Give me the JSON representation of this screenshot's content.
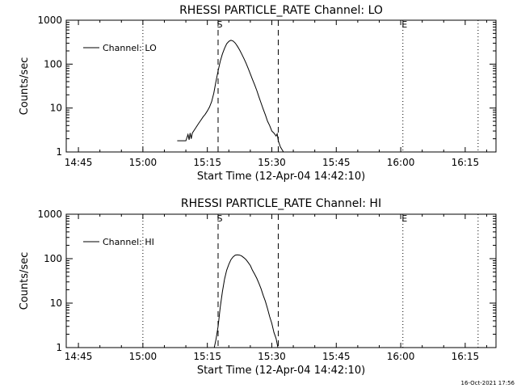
{
  "footer_timestamp": "16-Oct-2021 17:56",
  "x_tick_labels": [
    "14:45",
    "15:00",
    "15:15",
    "15:30",
    "15:45",
    "16:00",
    "16:15"
  ],
  "x_tick_minutes": [
    105,
    120,
    135,
    150,
    165,
    180,
    195
  ],
  "y_tick_labels": [
    "1",
    "10",
    "100",
    "1000"
  ],
  "marker_s": "S",
  "marker_e": "E",
  "chart_data": [
    {
      "type": "line",
      "title": "RHESSI PARTICLE_RATE Channel: LO",
      "xlabel": "Start Time (12-Apr-04 14:42:10)",
      "ylabel": "Counts/sec",
      "x_unit": "UT time 12-Apr-04",
      "xlim": [
        "14:42:10",
        "16:22:10"
      ],
      "ylim": [
        1,
        1000
      ],
      "y_scale": "log",
      "grid": false,
      "legend_position": "upper-left",
      "series": [
        {
          "name": "Channel: LO",
          "x": [
            "15:08",
            "15:10",
            "15:10:30",
            "15:10:45",
            "15:11",
            "15:11:15",
            "15:11:30",
            "15:12",
            "15:12:30",
            "15:13",
            "15:13:30",
            "15:14",
            "15:14:30",
            "15:15",
            "15:15:30",
            "15:16",
            "15:16:30",
            "15:17",
            "15:17:30",
            "15:18",
            "15:18:30",
            "15:19",
            "15:19:30",
            "15:20",
            "15:20:30",
            "15:21",
            "15:21:30",
            "15:22",
            "15:22:30",
            "15:23",
            "15:23:30",
            "15:24",
            "15:24:30",
            "15:25",
            "15:25:30",
            "15:26",
            "15:26:30",
            "15:27",
            "15:27:30",
            "15:28",
            "15:28:30",
            "15:29",
            "15:29:30",
            "15:30",
            "15:30:30",
            "15:31",
            "15:31:15",
            "15:31:30",
            "15:32",
            "15:33"
          ],
          "y": [
            1.8,
            1.8,
            2.5,
            1.9,
            2.7,
            2.0,
            2.7,
            3.2,
            3.8,
            4.5,
            5.3,
            6.3,
            7.2,
            8.6,
            10.5,
            14,
            22,
            40,
            70,
            115,
            170,
            230,
            290,
            330,
            350,
            335,
            300,
            255,
            210,
            170,
            135,
            105,
            80,
            60,
            45,
            34,
            25,
            18,
            13,
            9.5,
            7,
            5,
            4,
            3,
            2.7,
            2.3,
            2.6,
            1.8,
            1.3,
            0.9
          ]
        }
      ],
      "reference_lines": [
        {
          "label": "S",
          "x": "15:17:30",
          "style": "dashed"
        },
        {
          "label": "",
          "x": "15:31:30",
          "style": "dashed"
        },
        {
          "label": "",
          "x": "15:00",
          "style": "dotted"
        },
        {
          "label": "E",
          "x": "16:00:30",
          "style": "dotted"
        },
        {
          "label": "",
          "x": "16:18",
          "style": "dotted"
        }
      ]
    },
    {
      "type": "line",
      "title": "RHESSI PARTICLE_RATE Channel: HI",
      "xlabel": "Start Time (12-Apr-04 14:42:10)",
      "ylabel": "Counts/sec",
      "x_unit": "UT time 12-Apr-04",
      "xlim": [
        "14:42:10",
        "16:22:10"
      ],
      "ylim": [
        1,
        1000
      ],
      "y_scale": "log",
      "grid": false,
      "legend_position": "upper-left",
      "series": [
        {
          "name": "Channel: HI",
          "x": [
            "15:16:30",
            "15:17",
            "15:17:30",
            "15:18",
            "15:18:30",
            "15:19",
            "15:19:30",
            "15:20",
            "15:20:30",
            "15:21",
            "15:21:30",
            "15:22",
            "15:22:30",
            "15:23",
            "15:23:30",
            "15:24",
            "15:24:30",
            "15:25",
            "15:25:30",
            "15:26",
            "15:26:30",
            "15:27",
            "15:27:30",
            "15:28",
            "15:28:30",
            "15:29",
            "15:29:30",
            "15:30",
            "15:30:30",
            "15:31",
            "15:31:30"
          ],
          "y": [
            0.9,
            1.5,
            3,
            8,
            18,
            35,
            55,
            75,
            95,
            110,
            120,
            122,
            120,
            115,
            105,
            95,
            82,
            70,
            55,
            45,
            36,
            28,
            21,
            15,
            11,
            7.5,
            5,
            3.5,
            2.2,
            1.6,
            0.9
          ]
        }
      ],
      "reference_lines": [
        {
          "label": "S",
          "x": "15:17:30",
          "style": "dashed"
        },
        {
          "label": "",
          "x": "15:31:30",
          "style": "dashed"
        },
        {
          "label": "",
          "x": "15:00",
          "style": "dotted"
        },
        {
          "label": "E",
          "x": "16:00:30",
          "style": "dotted"
        },
        {
          "label": "",
          "x": "16:18",
          "style": "dotted"
        }
      ]
    }
  ]
}
